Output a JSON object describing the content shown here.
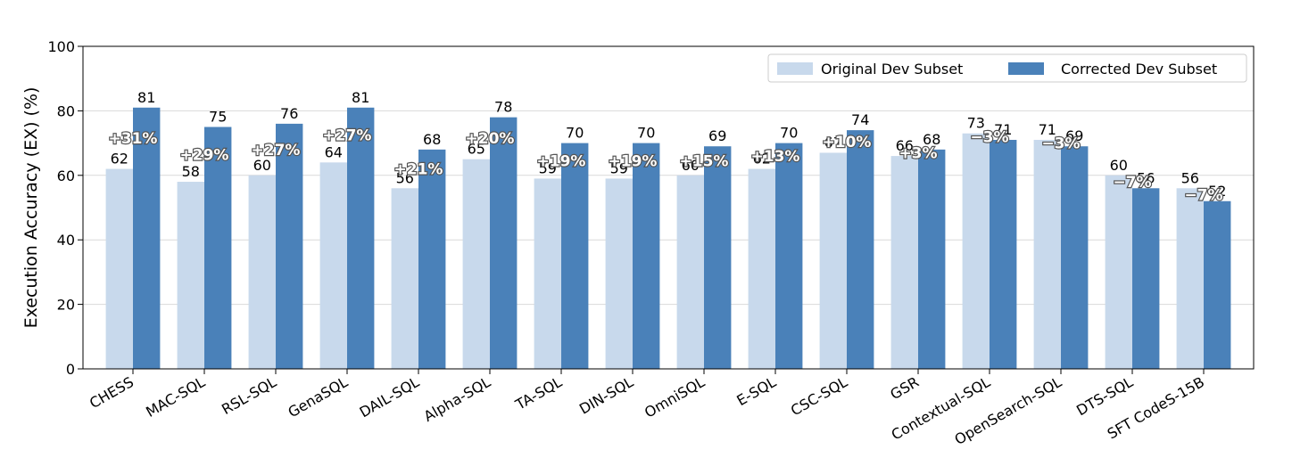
{
  "chart_data": {
    "type": "bar",
    "title": "",
    "xlabel": "",
    "ylabel": "Execution Accuracy (EX) (%)",
    "ylim": [
      0,
      100
    ],
    "yticks": [
      0,
      20,
      40,
      60,
      80,
      100
    ],
    "grid": "y",
    "legend_position": "top-right",
    "categories": [
      "CHESS",
      "MAC-SQL",
      "RSL-SQL",
      "GenaSQL",
      "DAIL-SQL",
      "Alpha-SQL",
      "TA-SQL",
      "DIN-SQL",
      "OmniSQL",
      "E-SQL",
      "CSC-SQL",
      "GSR",
      "Contextual-SQL",
      "OpenSearch-SQL",
      "DTS-SQL",
      "SFT CodeS-15B"
    ],
    "series": [
      {
        "name": "Original Dev Subset",
        "color": "#c8d9ec",
        "values": [
          62,
          58,
          60,
          64,
          56,
          65,
          59,
          59,
          60,
          62,
          67,
          66,
          73,
          71,
          60,
          56
        ]
      },
      {
        "name": "Corrected Dev Subset",
        "color": "#4a81b9",
        "values": [
          81,
          75,
          76,
          81,
          68,
          78,
          70,
          70,
          69,
          70,
          74,
          68,
          71,
          69,
          56,
          52
        ]
      }
    ],
    "annotations": [
      "+31%",
      "+29%",
      "+27%",
      "+27%",
      "+21%",
      "+20%",
      "+19%",
      "+19%",
      "+15%",
      "+13%",
      "+10%",
      "+3%",
      "−3%",
      "−3%",
      "−7%",
      "−7%"
    ]
  }
}
